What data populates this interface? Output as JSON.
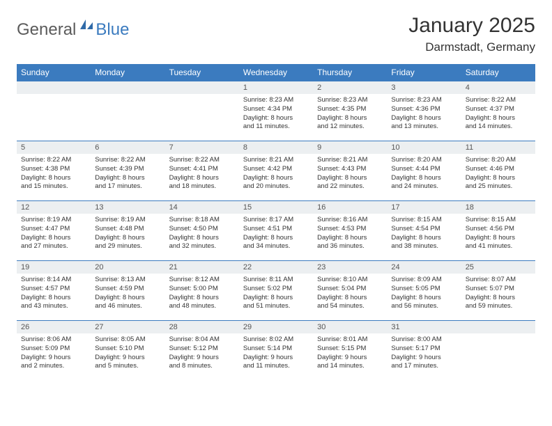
{
  "logo": {
    "text1": "General",
    "text2": "Blue"
  },
  "title": "January 2025",
  "location": "Darmstadt, Germany",
  "colors": {
    "header_bg": "#3b7bbf",
    "header_text": "#ffffff",
    "daynum_bg": "#eceff1",
    "body_text": "#333333",
    "rule": "#3b7bbf",
    "logo_gray": "#5b5b5b",
    "logo_blue": "#3b7bbf"
  },
  "day_headers": [
    "Sunday",
    "Monday",
    "Tuesday",
    "Wednesday",
    "Thursday",
    "Friday",
    "Saturday"
  ],
  "weeks": [
    [
      null,
      null,
      null,
      {
        "n": "1",
        "sunrise": "8:23 AM",
        "sunset": "4:34 PM",
        "dl_h": 8,
        "dl_m": 11
      },
      {
        "n": "2",
        "sunrise": "8:23 AM",
        "sunset": "4:35 PM",
        "dl_h": 8,
        "dl_m": 12
      },
      {
        "n": "3",
        "sunrise": "8:23 AM",
        "sunset": "4:36 PM",
        "dl_h": 8,
        "dl_m": 13
      },
      {
        "n": "4",
        "sunrise": "8:22 AM",
        "sunset": "4:37 PM",
        "dl_h": 8,
        "dl_m": 14
      }
    ],
    [
      {
        "n": "5",
        "sunrise": "8:22 AM",
        "sunset": "4:38 PM",
        "dl_h": 8,
        "dl_m": 15
      },
      {
        "n": "6",
        "sunrise": "8:22 AM",
        "sunset": "4:39 PM",
        "dl_h": 8,
        "dl_m": 17
      },
      {
        "n": "7",
        "sunrise": "8:22 AM",
        "sunset": "4:41 PM",
        "dl_h": 8,
        "dl_m": 18
      },
      {
        "n": "8",
        "sunrise": "8:21 AM",
        "sunset": "4:42 PM",
        "dl_h": 8,
        "dl_m": 20
      },
      {
        "n": "9",
        "sunrise": "8:21 AM",
        "sunset": "4:43 PM",
        "dl_h": 8,
        "dl_m": 22
      },
      {
        "n": "10",
        "sunrise": "8:20 AM",
        "sunset": "4:44 PM",
        "dl_h": 8,
        "dl_m": 24
      },
      {
        "n": "11",
        "sunrise": "8:20 AM",
        "sunset": "4:46 PM",
        "dl_h": 8,
        "dl_m": 25
      }
    ],
    [
      {
        "n": "12",
        "sunrise": "8:19 AM",
        "sunset": "4:47 PM",
        "dl_h": 8,
        "dl_m": 27
      },
      {
        "n": "13",
        "sunrise": "8:19 AM",
        "sunset": "4:48 PM",
        "dl_h": 8,
        "dl_m": 29
      },
      {
        "n": "14",
        "sunrise": "8:18 AM",
        "sunset": "4:50 PM",
        "dl_h": 8,
        "dl_m": 32
      },
      {
        "n": "15",
        "sunrise": "8:17 AM",
        "sunset": "4:51 PM",
        "dl_h": 8,
        "dl_m": 34
      },
      {
        "n": "16",
        "sunrise": "8:16 AM",
        "sunset": "4:53 PM",
        "dl_h": 8,
        "dl_m": 36
      },
      {
        "n": "17",
        "sunrise": "8:15 AM",
        "sunset": "4:54 PM",
        "dl_h": 8,
        "dl_m": 38
      },
      {
        "n": "18",
        "sunrise": "8:15 AM",
        "sunset": "4:56 PM",
        "dl_h": 8,
        "dl_m": 41
      }
    ],
    [
      {
        "n": "19",
        "sunrise": "8:14 AM",
        "sunset": "4:57 PM",
        "dl_h": 8,
        "dl_m": 43
      },
      {
        "n": "20",
        "sunrise": "8:13 AM",
        "sunset": "4:59 PM",
        "dl_h": 8,
        "dl_m": 46
      },
      {
        "n": "21",
        "sunrise": "8:12 AM",
        "sunset": "5:00 PM",
        "dl_h": 8,
        "dl_m": 48
      },
      {
        "n": "22",
        "sunrise": "8:11 AM",
        "sunset": "5:02 PM",
        "dl_h": 8,
        "dl_m": 51
      },
      {
        "n": "23",
        "sunrise": "8:10 AM",
        "sunset": "5:04 PM",
        "dl_h": 8,
        "dl_m": 54
      },
      {
        "n": "24",
        "sunrise": "8:09 AM",
        "sunset": "5:05 PM",
        "dl_h": 8,
        "dl_m": 56
      },
      {
        "n": "25",
        "sunrise": "8:07 AM",
        "sunset": "5:07 PM",
        "dl_h": 8,
        "dl_m": 59
      }
    ],
    [
      {
        "n": "26",
        "sunrise": "8:06 AM",
        "sunset": "5:09 PM",
        "dl_h": 9,
        "dl_m": 2
      },
      {
        "n": "27",
        "sunrise": "8:05 AM",
        "sunset": "5:10 PM",
        "dl_h": 9,
        "dl_m": 5
      },
      {
        "n": "28",
        "sunrise": "8:04 AM",
        "sunset": "5:12 PM",
        "dl_h": 9,
        "dl_m": 8
      },
      {
        "n": "29",
        "sunrise": "8:02 AM",
        "sunset": "5:14 PM",
        "dl_h": 9,
        "dl_m": 11
      },
      {
        "n": "30",
        "sunrise": "8:01 AM",
        "sunset": "5:15 PM",
        "dl_h": 9,
        "dl_m": 14
      },
      {
        "n": "31",
        "sunrise": "8:00 AM",
        "sunset": "5:17 PM",
        "dl_h": 9,
        "dl_m": 17
      },
      null
    ]
  ],
  "labels": {
    "sunrise": "Sunrise:",
    "sunset": "Sunset:",
    "daylight": "Daylight:",
    "hours": "hours",
    "and": "and",
    "minutes": "minutes."
  }
}
